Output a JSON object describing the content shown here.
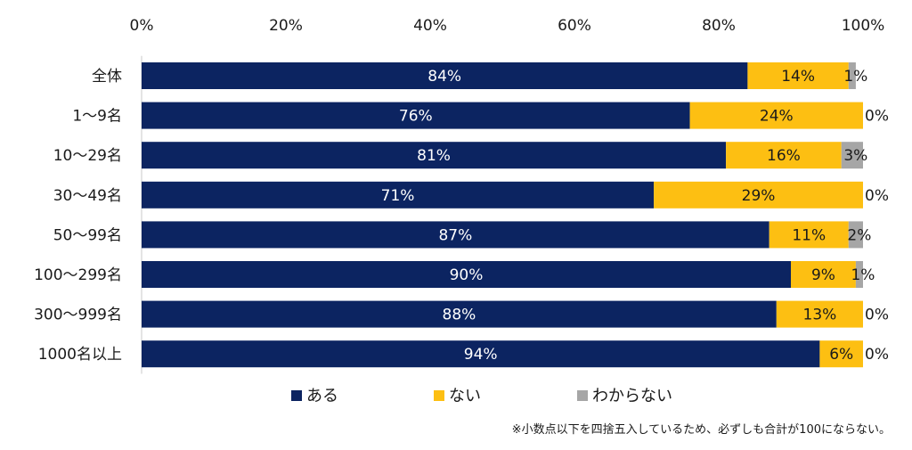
{
  "chart_data": {
    "type": "bar",
    "orientation": "horizontal",
    "stacked": true,
    "percent": true,
    "xlim": [
      0,
      100
    ],
    "x_ticks": [
      "0%",
      "20%",
      "40%",
      "60%",
      "80%",
      "100%"
    ],
    "x_tick_values": [
      0,
      20,
      40,
      60,
      80,
      100
    ],
    "categories": [
      "全体",
      "1～9名",
      "10～29名",
      "30～49名",
      "50～99名",
      "100～299名",
      "300～999名",
      "1000名以上"
    ],
    "series": [
      {
        "name": "ある",
        "color": "#0c2461",
        "values": [
          84,
          76,
          81,
          71,
          87,
          90,
          88,
          94
        ],
        "labels": [
          "84%",
          "76%",
          "81%",
          "71%",
          "87%",
          "90%",
          "88%",
          "94%"
        ]
      },
      {
        "name": "ない",
        "color": "#fdbf12",
        "values": [
          14,
          24,
          16,
          29,
          11,
          9,
          13,
          6
        ],
        "labels": [
          "14%",
          "24%",
          "16%",
          "29%",
          "11%",
          "9%",
          "13%",
          "6%"
        ]
      },
      {
        "name": "わからない",
        "color": "#a6a6a6",
        "values": [
          1,
          0,
          3,
          0,
          2,
          1,
          0,
          0
        ],
        "labels": [
          "1%",
          "0%",
          "3%",
          "0%",
          "2%",
          "1%",
          "0%",
          "0%"
        ]
      }
    ],
    "legend_position": "bottom",
    "grid": false
  },
  "footnote": "※小数点以下を四捨五入しているため、必ずしも合計が100にならない。"
}
